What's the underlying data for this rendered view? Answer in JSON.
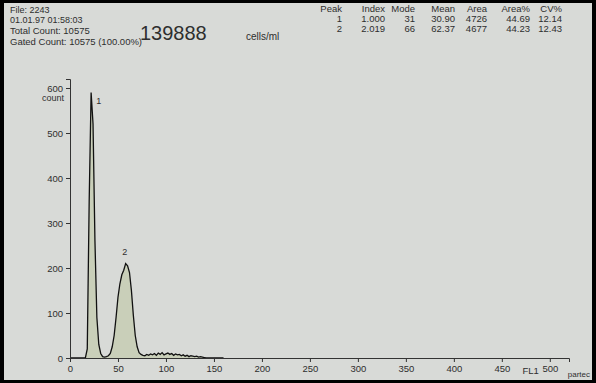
{
  "chart_data": {
    "type": "line",
    "file": "File: 2243",
    "timestamp": "01.01.97 01:58:03",
    "total_count": "Total Count: 10575",
    "gated_count": "Gated Count: 10575 (100.00%)",
    "concentration": "139888",
    "concentration_unit": "cells/ml",
    "peak_table": {
      "columns": [
        "Peak",
        "Index",
        "Mode",
        "Mean",
        "Area",
        "Area%",
        "CV%"
      ],
      "rows": [
        [
          "1",
          "1.000",
          "31",
          "30.90",
          "4726",
          "44.69",
          "12.14"
        ],
        [
          "2",
          "2.019",
          "66",
          "62.37",
          "4677",
          "44.23",
          "12.43"
        ]
      ]
    },
    "y_label": "count",
    "x_label": "FL1",
    "brand": "partec",
    "color": "#111111",
    "x": [
      0,
      2,
      4,
      6,
      8,
      10,
      12,
      14,
      16,
      18,
      20,
      22,
      24,
      26,
      28,
      30,
      32,
      34,
      36,
      38,
      40,
      42,
      44,
      46,
      48,
      50,
      52,
      54,
      56,
      58,
      60,
      62,
      64,
      66,
      68,
      70,
      72,
      74,
      76,
      78,
      80,
      82,
      84,
      86,
      88,
      90,
      92,
      94,
      96,
      98,
      100,
      102,
      104,
      106,
      108,
      110,
      112,
      114,
      116,
      118,
      120,
      122,
      124,
      126,
      128,
      130,
      132,
      134,
      136,
      138,
      140,
      142,
      144,
      146,
      148,
      150,
      152,
      154,
      156,
      158,
      160
    ],
    "values": [
      0,
      0,
      0,
      0,
      0,
      0,
      0,
      0,
      0,
      20,
      350,
      590,
      520,
      260,
      90,
      30,
      10,
      3,
      2,
      3,
      5,
      10,
      25,
      50,
      90,
      135,
      165,
      185,
      195,
      210,
      205,
      190,
      150,
      95,
      50,
      25,
      12,
      8,
      6,
      5,
      8,
      6,
      9,
      7,
      10,
      6,
      11,
      8,
      12,
      7,
      9,
      11,
      8,
      10,
      6,
      9,
      7,
      8,
      5,
      7,
      4,
      6,
      3,
      5,
      4,
      3,
      4,
      2,
      3,
      2,
      1,
      0,
      0,
      0,
      0,
      0,
      0,
      0,
      0,
      0,
      0
    ],
    "annotations": [
      {
        "text": "1",
        "x": 30,
        "y": 565
      },
      {
        "text": "2",
        "x": 57,
        "y": 228
      }
    ],
    "xlim": [
      0,
      520
    ],
    "xticks": [
      0,
      50,
      100,
      150,
      200,
      250,
      300,
      350,
      400,
      450,
      500
    ],
    "ylim": [
      0,
      620
    ],
    "yticks": [
      0,
      100,
      200,
      300,
      400,
      500,
      600
    ],
    "grid": false
  }
}
